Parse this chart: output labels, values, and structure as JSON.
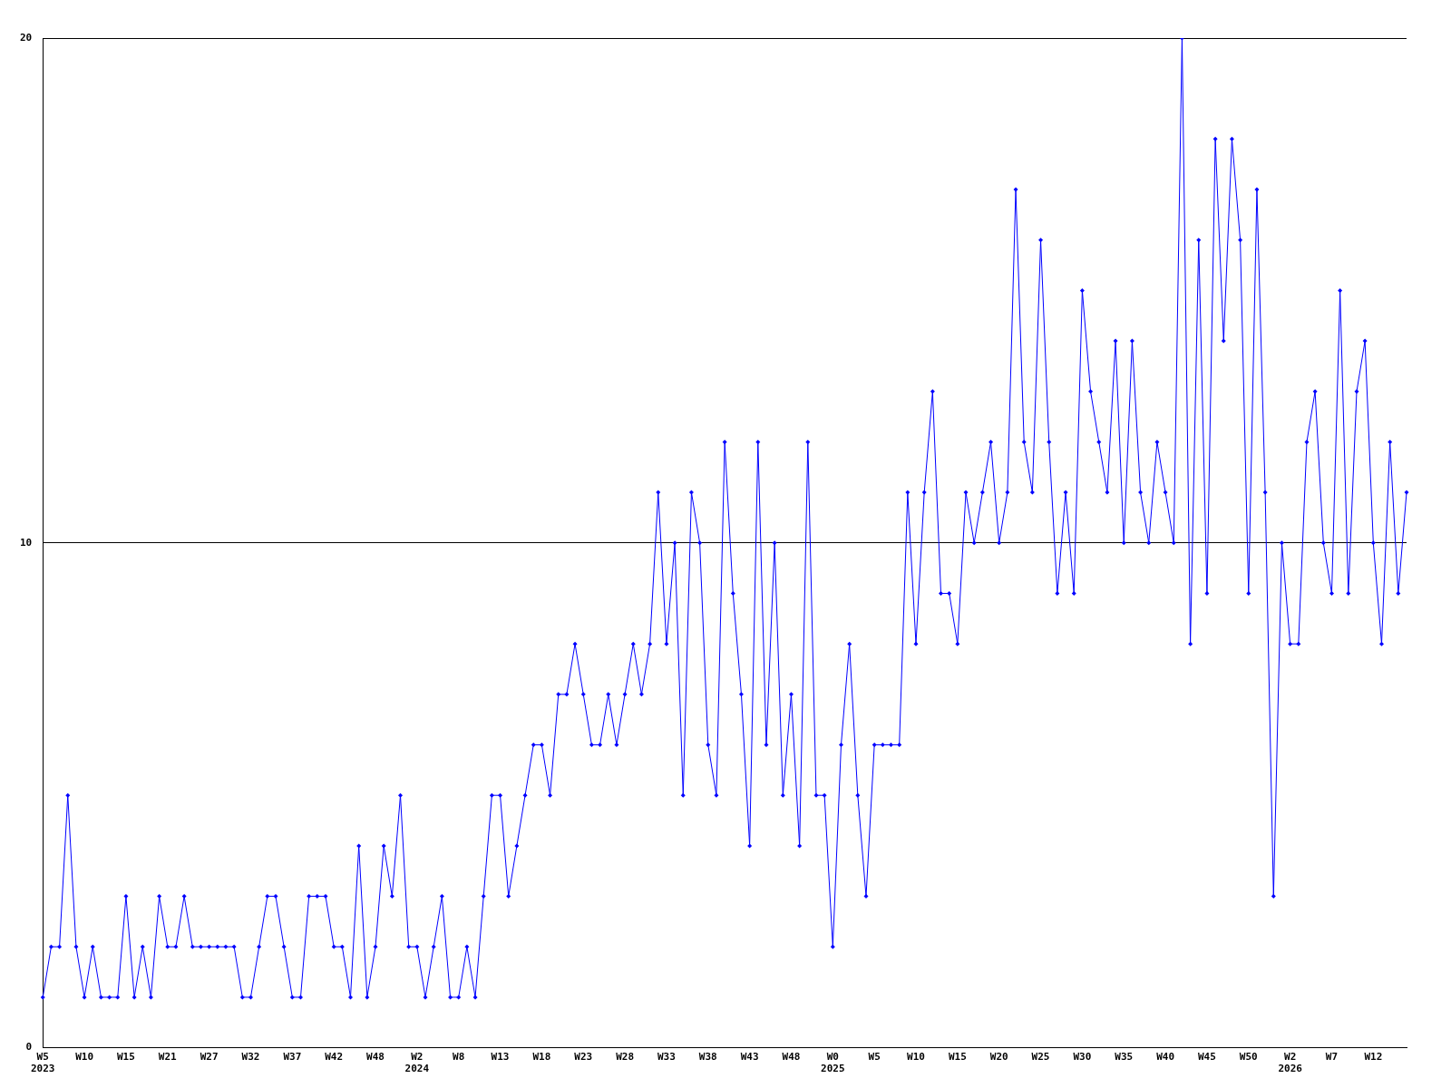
{
  "chart_data": {
    "type": "line",
    "categories": [
      "W5\n2023",
      null,
      null,
      null,
      null,
      "W10",
      null,
      null,
      null,
      null,
      "W15",
      null,
      null,
      null,
      null,
      "W21",
      null,
      null,
      null,
      null,
      "W27",
      null,
      null,
      null,
      null,
      "W32",
      null,
      null,
      null,
      null,
      "W37",
      null,
      null,
      null,
      null,
      "W42",
      null,
      null,
      null,
      null,
      "W48",
      null,
      null,
      null,
      null,
      "W2\n2024",
      null,
      null,
      null,
      null,
      "W8",
      null,
      null,
      null,
      null,
      "W13",
      null,
      null,
      null,
      null,
      "W18",
      null,
      null,
      null,
      null,
      "W23",
      null,
      null,
      null,
      null,
      "W28",
      null,
      null,
      null,
      null,
      "W33",
      null,
      null,
      null,
      null,
      "W38",
      null,
      null,
      null,
      null,
      "W43",
      null,
      null,
      null,
      null,
      "W48",
      null,
      null,
      null,
      null,
      "W0\n2025",
      null,
      null,
      null,
      null,
      "W5",
      null,
      null,
      null,
      null,
      "W10",
      null,
      null,
      null,
      null,
      "W15",
      null,
      null,
      null,
      null,
      "W20",
      null,
      null,
      null,
      null,
      "W25",
      null,
      null,
      null,
      null,
      "W30",
      null,
      null,
      null,
      null,
      "W35",
      null,
      null,
      null,
      null,
      "W40",
      null,
      null,
      null,
      null,
      "W45",
      null,
      null,
      null,
      null,
      "W50",
      null,
      null,
      null,
      null,
      "W2\n2026",
      null,
      null,
      null,
      null,
      "W7",
      null,
      null,
      null,
      null,
      "W12",
      null,
      null,
      null,
      null
    ],
    "values": [
      1,
      2,
      2,
      5,
      2,
      1,
      2,
      1,
      1,
      1,
      3,
      1,
      2,
      1,
      3,
      2,
      2,
      3,
      2,
      2,
      2,
      2,
      2,
      2,
      1,
      1,
      2,
      3,
      3,
      2,
      1,
      1,
      3,
      3,
      3,
      2,
      2,
      1,
      4,
      1,
      2,
      4,
      3,
      5,
      2,
      2,
      1,
      2,
      3,
      1,
      1,
      2,
      1,
      3,
      5,
      5,
      3,
      4,
      5,
      6,
      6,
      5,
      7,
      7,
      8,
      7,
      6,
      6,
      7,
      6,
      7,
      8,
      7,
      8,
      11,
      8,
      10,
      5,
      11,
      10,
      6,
      5,
      12,
      9,
      7,
      4,
      12,
      6,
      10,
      5,
      7,
      4,
      12,
      5,
      5,
      2,
      6,
      8,
      5,
      3,
      6,
      6,
      6,
      6,
      11,
      8,
      11,
      13,
      9,
      9,
      8,
      11,
      10,
      11,
      12,
      10,
      11,
      17,
      12,
      11,
      16,
      12,
      9,
      11,
      9,
      15,
      13,
      12,
      11,
      14,
      10,
      14,
      11,
      10,
      12,
      11,
      10,
      20,
      8,
      16,
      9,
      18,
      14,
      18,
      16,
      9,
      17,
      11,
      3,
      10,
      8,
      8,
      12,
      13,
      10,
      9,
      15,
      9,
      13,
      14,
      10,
      8,
      12,
      9,
      11
    ],
    "color": "#0000ff",
    "ylim": [
      0,
      20
    ],
    "yticks": [
      0,
      10,
      20
    ],
    "grid": "y",
    "marker": "diamond"
  }
}
